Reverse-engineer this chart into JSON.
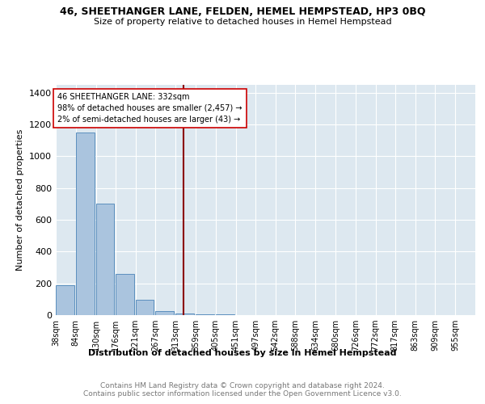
{
  "title": "46, SHEETHANGER LANE, FELDEN, HEMEL HEMPSTEAD, HP3 0BQ",
  "subtitle": "Size of property relative to detached houses in Hemel Hempstead",
  "xlabel": "Distribution of detached houses by size in Hemel Hempstead",
  "ylabel": "Number of detached properties",
  "footer": "Contains HM Land Registry data © Crown copyright and database right 2024.\nContains public sector information licensed under the Open Government Licence v3.0.",
  "annotation_lines": [
    "46 SHEETHANGER LANE: 332sqm",
    "98% of detached houses are smaller (2,457) →",
    "2% of semi-detached houses are larger (43) →"
  ],
  "property_size_sqm": 332,
  "bar_color": "#aac4de",
  "bar_edge_color": "#5b8fbe",
  "vline_color": "#8b0000",
  "annotation_box_edge_color": "#cc0000",
  "background_color": "#dde8f0",
  "categories": [
    "38sqm",
    "84sqm",
    "130sqm",
    "176sqm",
    "221sqm",
    "267sqm",
    "313sqm",
    "359sqm",
    "405sqm",
    "451sqm",
    "497sqm",
    "542sqm",
    "588sqm",
    "634sqm",
    "680sqm",
    "726sqm",
    "772sqm",
    "817sqm",
    "863sqm",
    "909sqm",
    "955sqm"
  ],
  "bin_edges_sqm": [
    38,
    84,
    130,
    176,
    221,
    267,
    313,
    359,
    405,
    451,
    497,
    542,
    588,
    634,
    680,
    726,
    772,
    817,
    863,
    909,
    955
  ],
  "values": [
    190,
    1150,
    700,
    260,
    95,
    25,
    10,
    5,
    3,
    2,
    1,
    1,
    0,
    0,
    0,
    0,
    0,
    0,
    0,
    0,
    0
  ],
  "ylim": [
    0,
    1450
  ],
  "yticks": [
    0,
    200,
    400,
    600,
    800,
    1000,
    1200,
    1400
  ]
}
